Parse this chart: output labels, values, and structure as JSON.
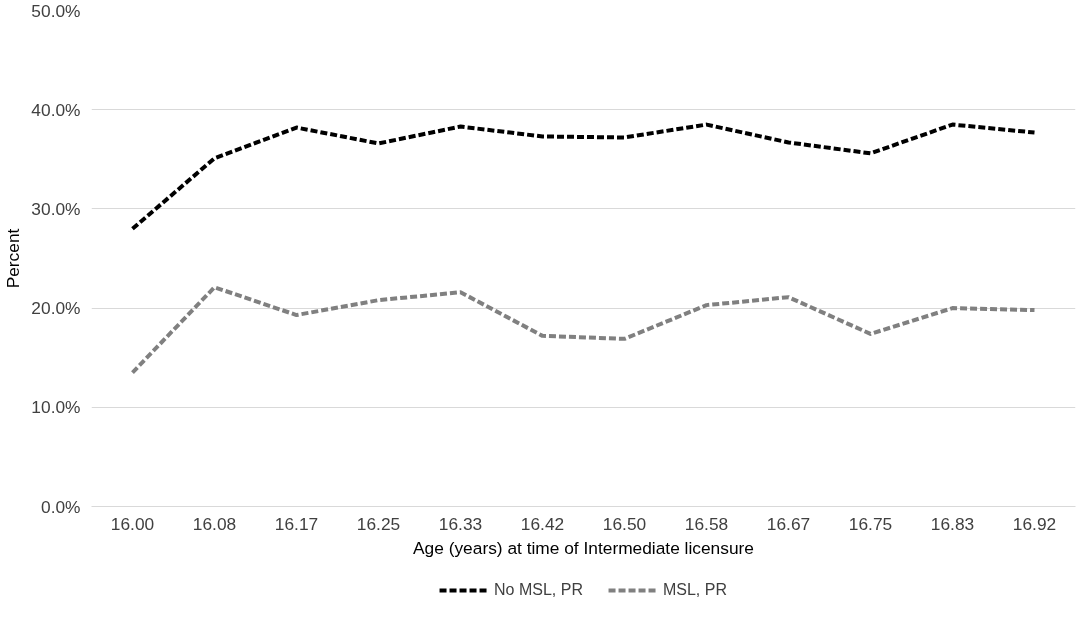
{
  "chart_data": {
    "type": "line",
    "xlabel": "Age (years) at time of Intermediate licensure",
    "ylabel": "Percent",
    "categories": [
      "16.00",
      "16.08",
      "16.17",
      "16.25",
      "16.33",
      "16.42",
      "16.50",
      "16.58",
      "16.67",
      "16.75",
      "16.83",
      "16.92"
    ],
    "series": [
      {
        "name": "No MSL, PR",
        "color": "#000000",
        "values": [
          28.0,
          35.1,
          38.2,
          36.6,
          38.3,
          37.3,
          37.2,
          38.5,
          36.7,
          35.6,
          38.5,
          37.7
        ]
      },
      {
        "name": "MSL, PR",
        "color": "#808080",
        "values": [
          13.5,
          22.1,
          19.3,
          20.8,
          21.6,
          17.2,
          16.9,
          20.3,
          21.1,
          17.4,
          20.0,
          19.8
        ]
      }
    ],
    "ylim": [
      0,
      50
    ],
    "yticks": [
      {
        "value": 0,
        "label": "0.0%"
      },
      {
        "value": 10,
        "label": "10.0%"
      },
      {
        "value": 20,
        "label": "20.0%"
      },
      {
        "value": 30,
        "label": "30.0%"
      },
      {
        "value": 40,
        "label": "40.0%"
      },
      {
        "value": 50,
        "label": "50.0%"
      }
    ],
    "grid": "y",
    "legend": "bottom",
    "line_style": "dashed",
    "marker": "none"
  }
}
